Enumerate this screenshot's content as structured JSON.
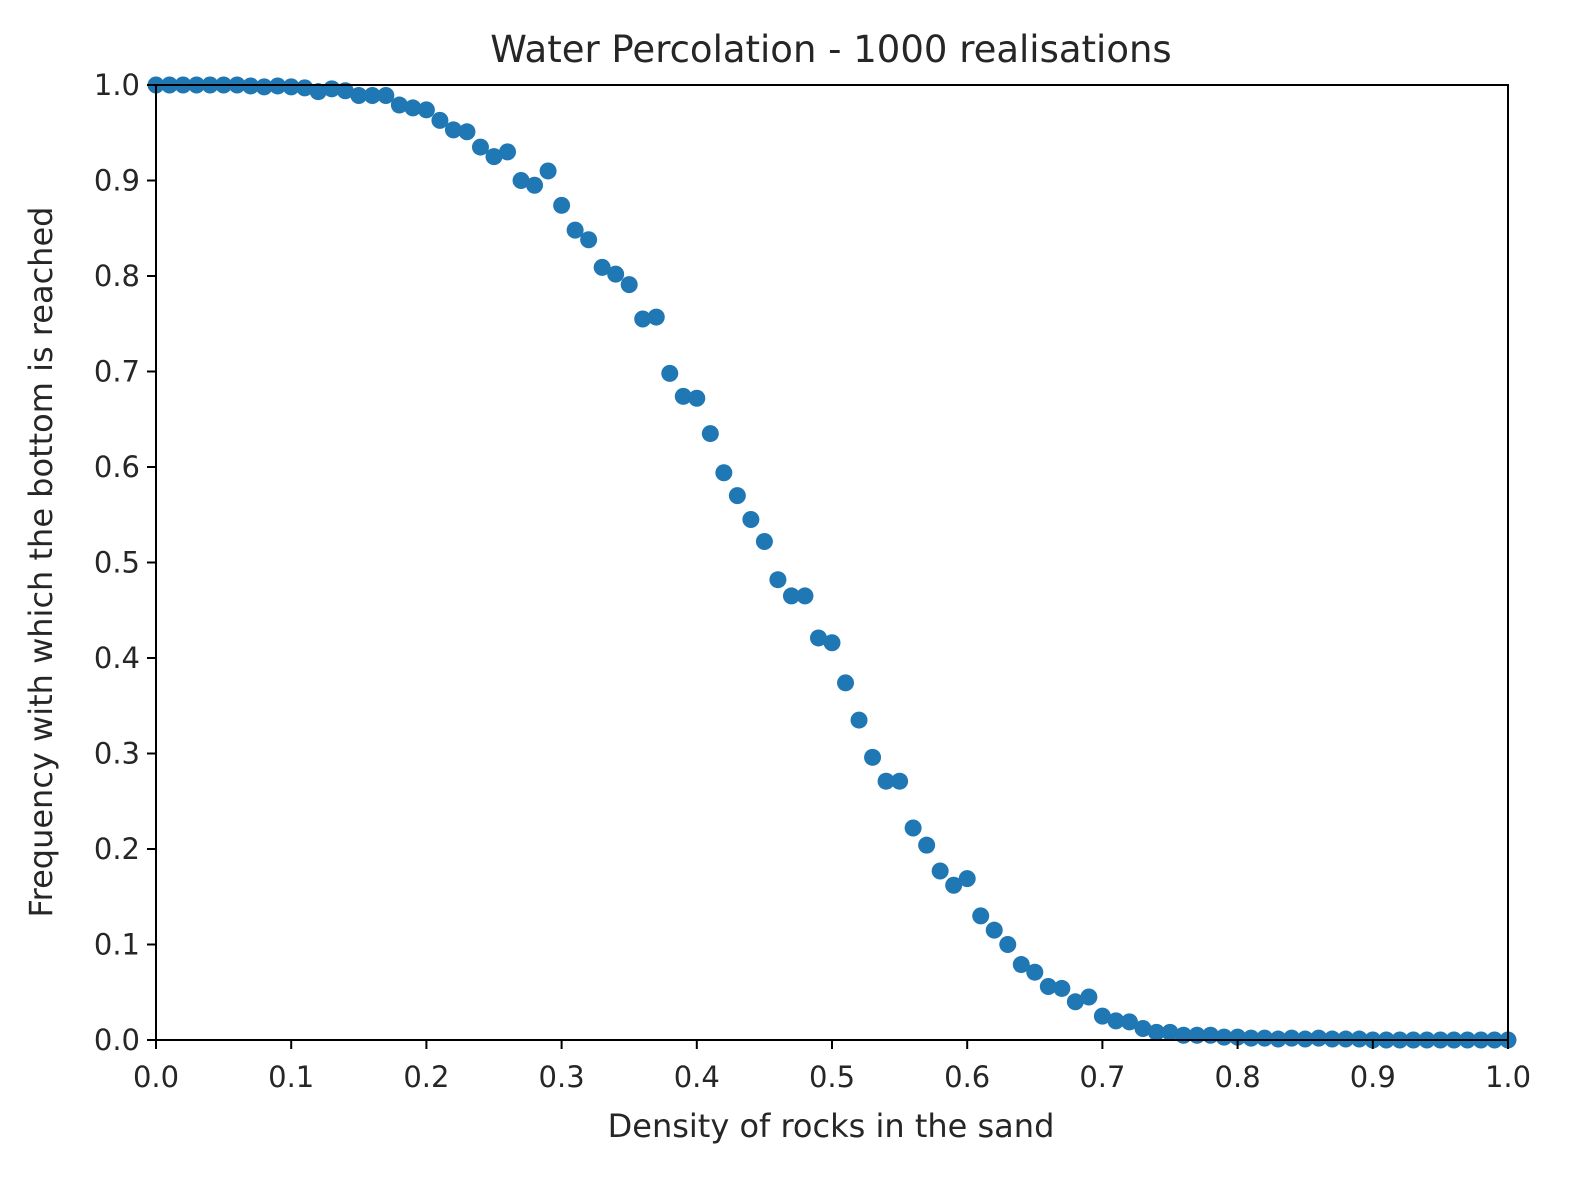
{
  "chart_data": {
    "type": "scatter",
    "title": "Water Percolation - 1000 realisations",
    "xlabel": "Density of rocks in the sand",
    "ylabel": "Frequency with which the bottom is reached",
    "xlim": [
      0.0,
      1.0
    ],
    "ylim": [
      0.0,
      1.0
    ],
    "xticks": [
      "0.0",
      "0.1",
      "0.2",
      "0.3",
      "0.4",
      "0.5",
      "0.6",
      "0.7",
      "0.8",
      "0.9",
      "1.0"
    ],
    "yticks": [
      "0.0",
      "0.1",
      "0.2",
      "0.3",
      "0.4",
      "0.5",
      "0.6",
      "0.7",
      "0.8",
      "0.9",
      "1.0"
    ],
    "grid": false,
    "marker_color": "#1f77b4",
    "series": [
      {
        "x": [
          0.0,
          0.01,
          0.02,
          0.03,
          0.04,
          0.05,
          0.06,
          0.07,
          0.08,
          0.09,
          0.1,
          0.11,
          0.12,
          0.13,
          0.14,
          0.15,
          0.16,
          0.17,
          0.18,
          0.19,
          0.2,
          0.21,
          0.22,
          0.23,
          0.24,
          0.25,
          0.26,
          0.27,
          0.28,
          0.29,
          0.3,
          0.31,
          0.32,
          0.33,
          0.34,
          0.35,
          0.36,
          0.37,
          0.38,
          0.39,
          0.4,
          0.41,
          0.42,
          0.43,
          0.44,
          0.45,
          0.46,
          0.47,
          0.48,
          0.49,
          0.5,
          0.51,
          0.52,
          0.53,
          0.54,
          0.55,
          0.56,
          0.57,
          0.58,
          0.59,
          0.6,
          0.61,
          0.62,
          0.63,
          0.64,
          0.65,
          0.66,
          0.67,
          0.68,
          0.69,
          0.7,
          0.71,
          0.72,
          0.73,
          0.74,
          0.75,
          0.76,
          0.77,
          0.78,
          0.79,
          0.8,
          0.81,
          0.82,
          0.83,
          0.84,
          0.85,
          0.86,
          0.87,
          0.88,
          0.89,
          0.9,
          0.91,
          0.92,
          0.93,
          0.94,
          0.95,
          0.96,
          0.97,
          0.98,
          0.99,
          1.0
        ],
        "y": [
          1.0,
          1.0,
          1.0,
          1.0,
          1.0,
          1.0,
          1.0,
          0.999,
          0.998,
          0.999,
          0.998,
          0.997,
          0.993,
          0.996,
          0.994,
          0.989,
          0.989,
          0.989,
          0.979,
          0.976,
          0.974,
          0.963,
          0.953,
          0.951,
          0.935,
          0.925,
          0.93,
          0.9,
          0.895,
          0.91,
          0.874,
          0.848,
          0.838,
          0.809,
          0.802,
          0.791,
          0.755,
          0.757,
          0.698,
          0.674,
          0.672,
          0.635,
          0.594,
          0.57,
          0.545,
          0.522,
          0.482,
          0.465,
          0.465,
          0.421,
          0.416,
          0.374,
          0.335,
          0.296,
          0.271,
          0.271,
          0.222,
          0.204,
          0.177,
          0.162,
          0.169,
          0.13,
          0.115,
          0.1,
          0.079,
          0.071,
          0.056,
          0.054,
          0.04,
          0.045,
          0.025,
          0.02,
          0.019,
          0.012,
          0.008,
          0.008,
          0.005,
          0.005,
          0.005,
          0.003,
          0.003,
          0.002,
          0.002,
          0.001,
          0.002,
          0.001,
          0.002,
          0.001,
          0.001,
          0.001,
          0.0,
          0.0,
          0.0,
          0.0,
          0.0,
          0.0,
          0.0,
          0.0,
          0.0,
          0.0,
          0.0
        ]
      }
    ]
  }
}
